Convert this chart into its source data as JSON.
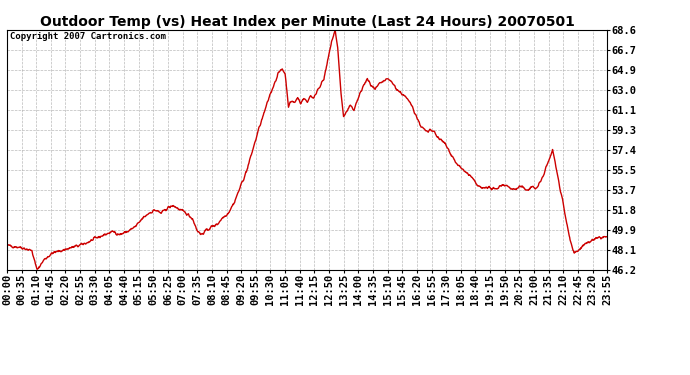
{
  "title": "Outdoor Temp (vs) Heat Index per Minute (Last 24 Hours) 20070501",
  "copyright_text": "Copyright 2007 Cartronics.com",
  "line_color": "#cc0000",
  "background_color": "#ffffff",
  "grid_color": "#aaaaaa",
  "ylim": [
    46.2,
    68.6
  ],
  "yticks": [
    46.2,
    48.1,
    49.9,
    51.8,
    53.7,
    55.5,
    57.4,
    59.3,
    61.1,
    63.0,
    64.9,
    66.7,
    68.6
  ],
  "xtick_labels": [
    "00:00",
    "00:35",
    "01:10",
    "01:45",
    "02:20",
    "02:55",
    "03:30",
    "04:05",
    "04:40",
    "05:15",
    "05:50",
    "06:25",
    "07:00",
    "07:35",
    "08:10",
    "08:45",
    "09:20",
    "09:55",
    "10:30",
    "11:05",
    "11:40",
    "12:15",
    "12:50",
    "13:25",
    "14:00",
    "14:35",
    "15:10",
    "15:45",
    "16:20",
    "16:55",
    "17:30",
    "18:05",
    "18:40",
    "19:15",
    "19:50",
    "20:25",
    "21:00",
    "21:35",
    "22:10",
    "22:45",
    "23:20",
    "23:55"
  ],
  "num_points": 1440,
  "title_fontsize": 10,
  "copyright_fontsize": 6.5,
  "tick_fontsize": 7.5,
  "line_width": 1.0
}
